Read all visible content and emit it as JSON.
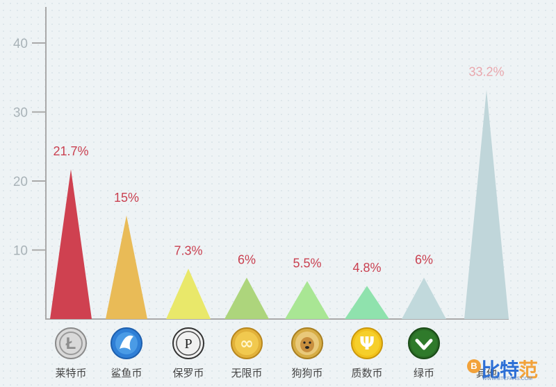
{
  "chart_data": {
    "type": "bar",
    "categories": [
      "莱特币",
      "鲨鱼币",
      "保罗币",
      "无限币",
      "狗狗币",
      "质数币",
      "绿币",
      "其他"
    ],
    "values": [
      21.7,
      15,
      7.3,
      6,
      5.5,
      4.8,
      6,
      33.2
    ],
    "value_labels": [
      "21.7%",
      "15%",
      "7.3%",
      "6%",
      "5.5%",
      "4.8%",
      "6%",
      "33.2%"
    ],
    "colors": [
      "#cf4150",
      "#e9bb57",
      "#e9e86a",
      "#add57c",
      "#a9e694",
      "#8fe2ad",
      "#c1d9dc",
      "#c0d6da"
    ],
    "label_colors": [
      "#c94050",
      "#c94050",
      "#c94050",
      "#c94050",
      "#c94050",
      "#c94050",
      "#c94050",
      "#e9a7ad"
    ],
    "icons": [
      "litecoin-icon",
      "sharkcoin-icon",
      "paulcoin-icon",
      "infinitecoin-icon",
      "dogecoin-icon",
      "primecoin-icon",
      "greencoin-icon",
      ""
    ],
    "yticks": [
      10,
      20,
      30,
      40
    ],
    "ylim": [
      0,
      45
    ],
    "xlabel": "",
    "ylabel": "",
    "title": "",
    "grid": false,
    "legend": "none"
  },
  "watermark": {
    "coin_glyph": "B",
    "brand_part1": "比特",
    "brand_part2": "范",
    "url": "WWW.BTCFANS.COM"
  }
}
